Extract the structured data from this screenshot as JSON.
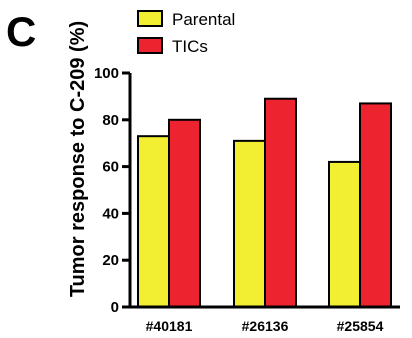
{
  "panel_label": "C",
  "chart_data": {
    "type": "bar",
    "categories": [
      "#40181",
      "#26136",
      "#25854"
    ],
    "series": [
      {
        "name": "Parental",
        "values": [
          73,
          71,
          62
        ],
        "color": "#f2ef33"
      },
      {
        "name": "TICs",
        "values": [
          80,
          89,
          87
        ],
        "color": "#ee2330"
      }
    ],
    "ylabel": "Tumor response to C-209 (%)",
    "xlabel": "",
    "ylim": [
      0,
      100
    ],
    "yticks": [
      "0",
      "20",
      "40",
      "60",
      "80",
      "100"
    ],
    "grid": false,
    "legend_position": "top-left"
  }
}
